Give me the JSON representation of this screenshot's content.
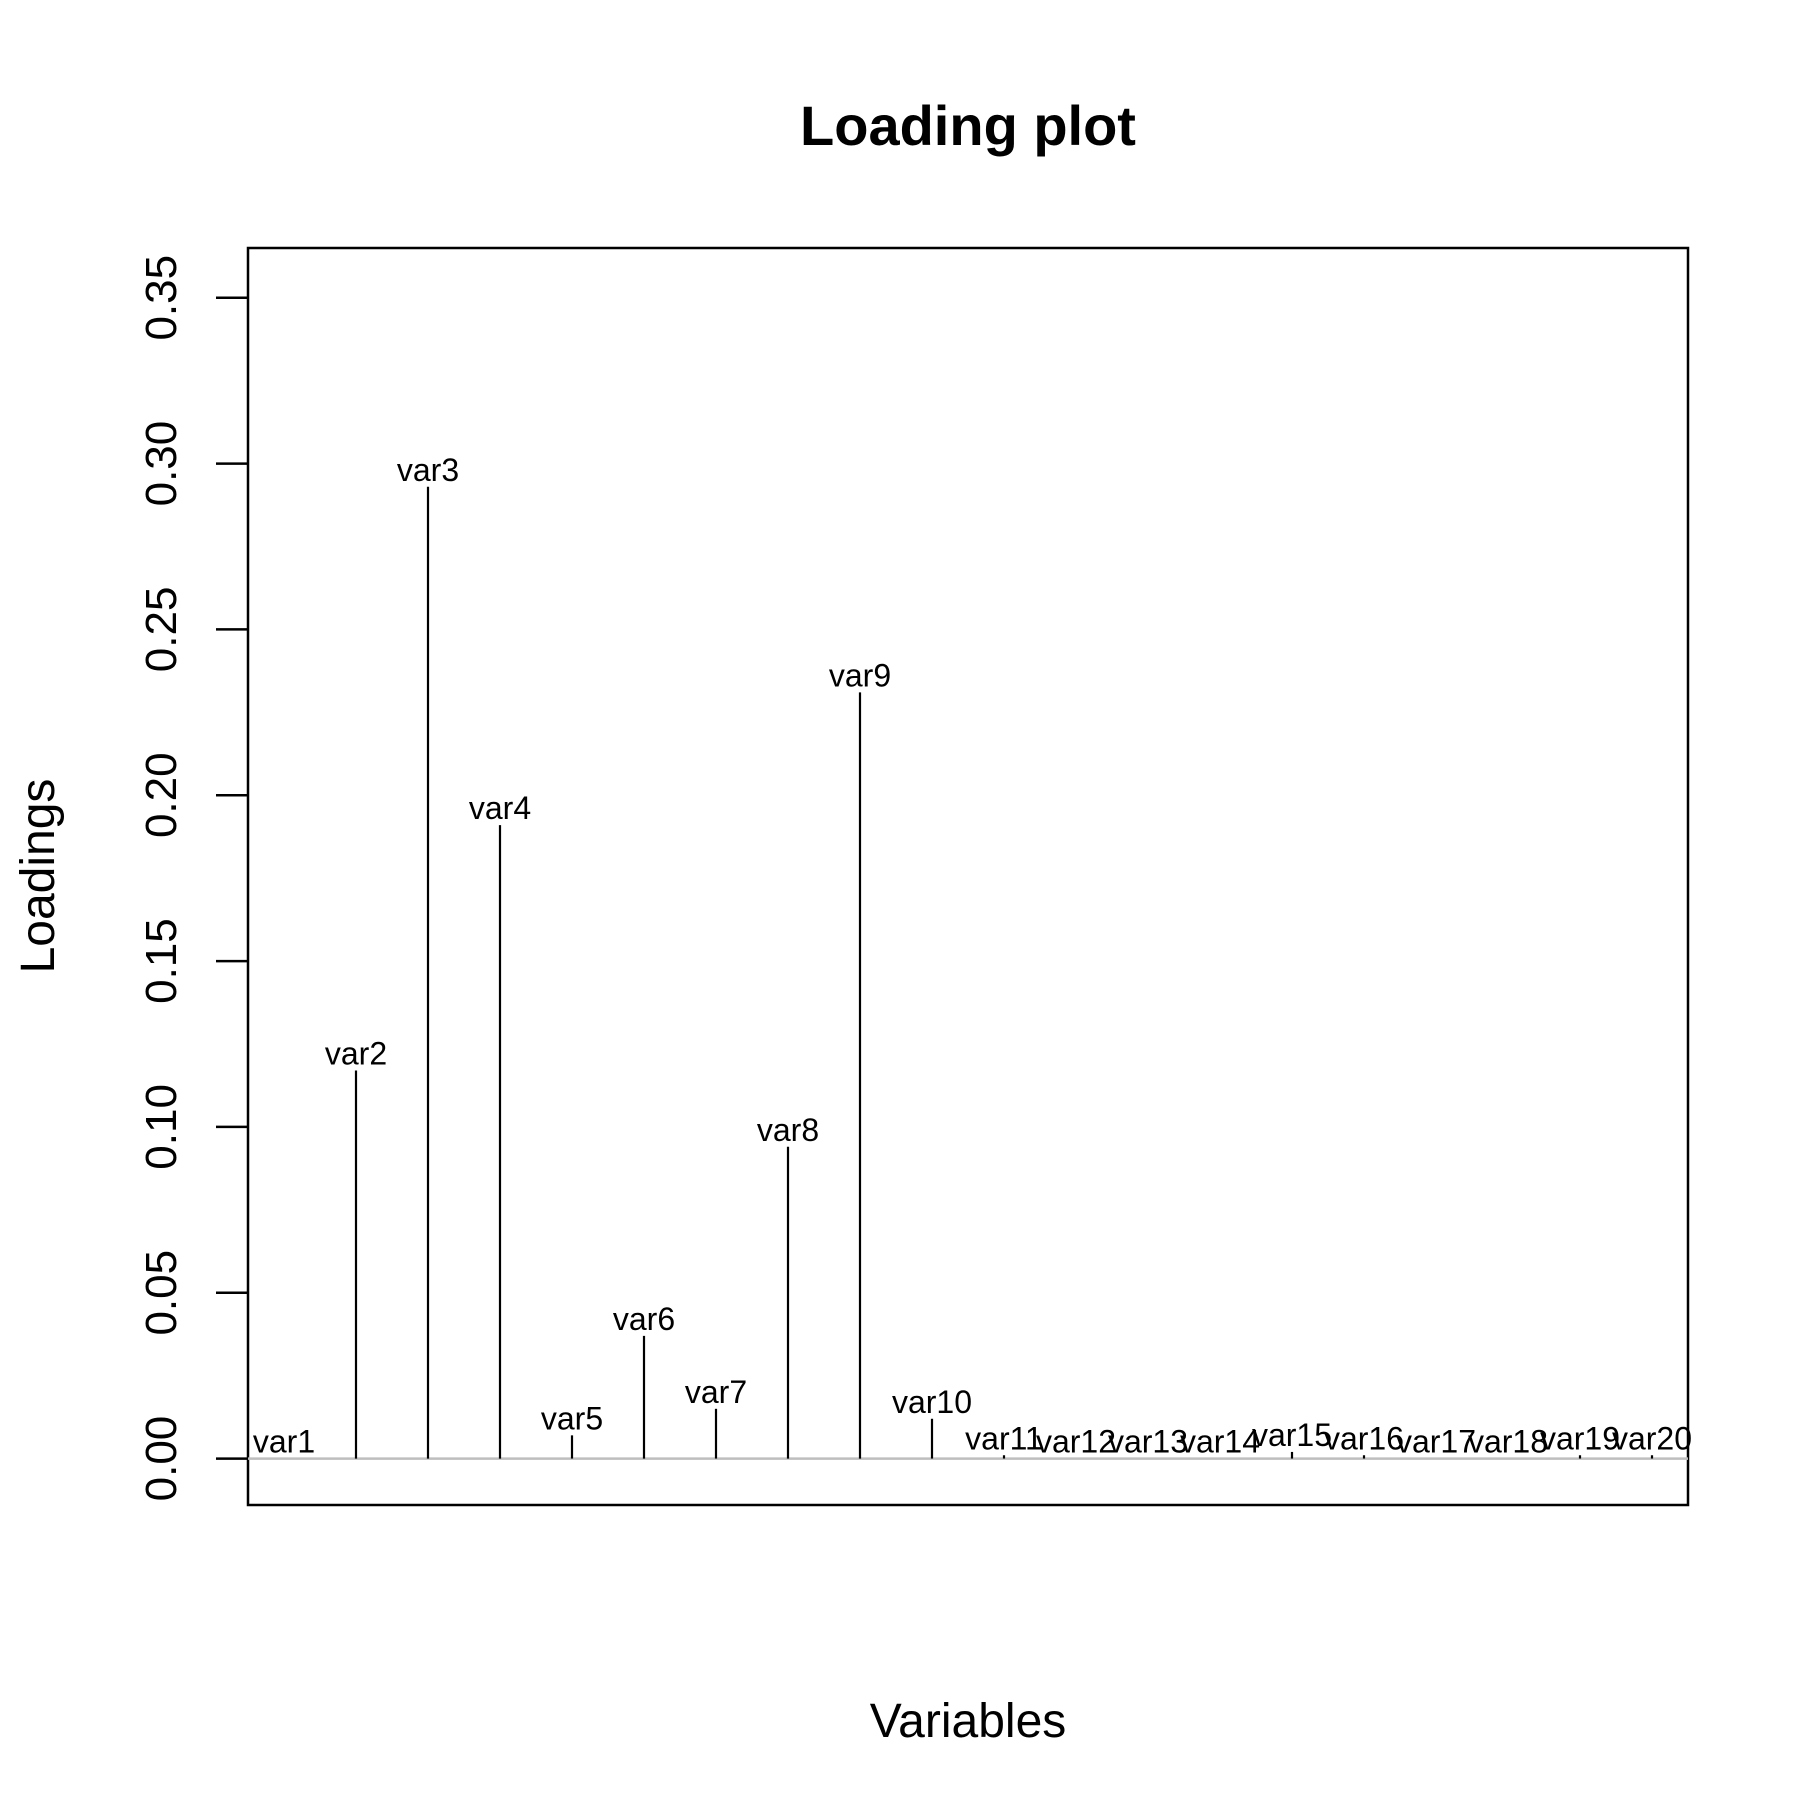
{
  "chart_data": {
    "type": "bar",
    "title": "Loading plot",
    "xlabel": "Variables",
    "ylabel": "Loadings",
    "ylim": [
      -0.014,
      0.365
    ],
    "yticks": [
      "0.00",
      "0.05",
      "0.10",
      "0.15",
      "0.20",
      "0.25",
      "0.30",
      "0.35"
    ],
    "reference_line": 0,
    "reference_line_color": "#bebebe",
    "categories": [
      "var1",
      "var2",
      "var3",
      "var4",
      "var5",
      "var6",
      "var7",
      "var8",
      "var9",
      "var10",
      "var11",
      "var12",
      "var13",
      "var14",
      "var15",
      "var16",
      "var17",
      "var18",
      "var19",
      "var20"
    ],
    "values": [
      0.0,
      0.117,
      0.293,
      0.191,
      0.007,
      0.037,
      0.015,
      0.094,
      0.231,
      0.012,
      0.001,
      0.0,
      0.0,
      0.0,
      0.002,
      0.001,
      0.0,
      0.0,
      0.001,
      0.001
    ],
    "grid": false,
    "legend": "none"
  }
}
